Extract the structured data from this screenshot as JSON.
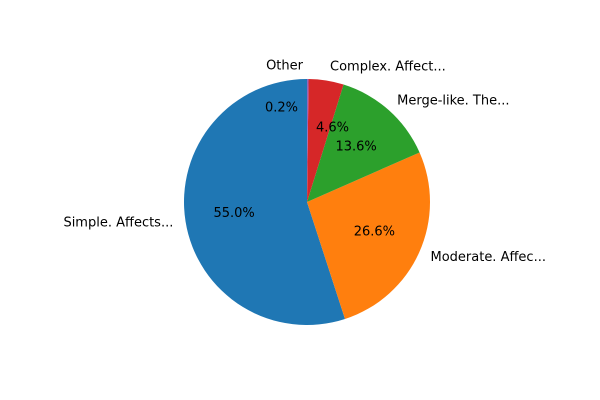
{
  "chart_data": {
    "type": "pie",
    "title": "",
    "labels": [
      "Simple. Affects...",
      "Moderate. Affec...",
      "Merge-like. The...",
      "Complex. Affect...",
      "Other"
    ],
    "values": [
      55.0,
      26.6,
      13.6,
      4.6,
      0.2
    ],
    "pct_labels": [
      "55.0%",
      "26.6%",
      "13.6%",
      "4.6%",
      "0.2%"
    ],
    "colors": [
      "#1f77b4",
      "#ff7f0e",
      "#2ca02c",
      "#d62728",
      "#9467bd"
    ],
    "start_angle": 90,
    "direction": "counterclockwise"
  }
}
